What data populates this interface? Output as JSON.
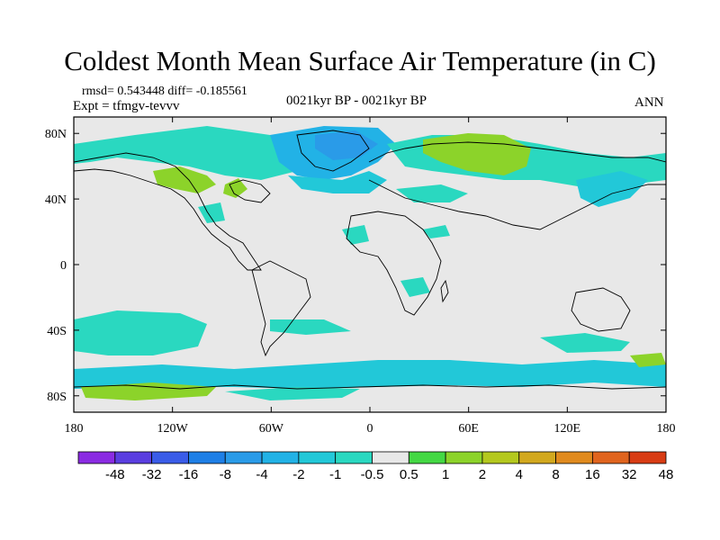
{
  "title": "Coldest Month Mean Surface Air Temperature (in C)",
  "stats_text": "rmsd= 0.543448 diff= -0.185561",
  "expt_text": "Expt = tfmgv-tevvv",
  "center_label": "0021kyr BP - 0021kyr BP",
  "season_label": "ANN",
  "map": {
    "projection": "cylindrical equidistant",
    "lon_range": [
      -180,
      180
    ],
    "lat_range": [
      -90,
      90
    ],
    "x_ticks": [
      {
        "lon": -180,
        "label": "180"
      },
      {
        "lon": -120,
        "label": "120W"
      },
      {
        "lon": -60,
        "label": "60W"
      },
      {
        "lon": 0,
        "label": "0"
      },
      {
        "lon": 60,
        "label": "60E"
      },
      {
        "lon": 120,
        "label": "120E"
      },
      {
        "lon": 180,
        "label": "180"
      }
    ],
    "y_ticks": [
      {
        "lat": 80,
        "label": "80N"
      },
      {
        "lat": 40,
        "label": "40N"
      },
      {
        "lat": 0,
        "label": "0"
      },
      {
        "lat": -40,
        "label": "40S"
      },
      {
        "lat": -80,
        "label": "80S"
      }
    ],
    "background_color": "#e8e8e8"
  },
  "colorbar": {
    "boundaries": [
      "-48",
      "-32",
      "-16",
      "-8",
      "-4",
      "-2",
      "-1",
      "-0.5",
      "0.5",
      "1",
      "2",
      "4",
      "8",
      "16",
      "32",
      "48"
    ],
    "colors": [
      "#8a2be2",
      "#5a3ee0",
      "#3a5ce8",
      "#1e7fe6",
      "#2a9be8",
      "#22b2e6",
      "#22c8d8",
      "#2ad8c0",
      "#e8e8e8",
      "#44d844",
      "#8cd32a",
      "#b4c81e",
      "#d2a81e",
      "#e08a1e",
      "#e0641e",
      "#d83c14"
    ]
  },
  "regions": [
    {
      "id": "arctic-canada",
      "value_range": "-1 to -0.5",
      "lon": [
        -170,
        -90
      ],
      "lat": [
        60,
        80
      ]
    },
    {
      "id": "greenland",
      "value_range": "-4 to -2",
      "lon": [
        -60,
        -20
      ],
      "lat": [
        65,
        82
      ]
    },
    {
      "id": "north-atlantic",
      "value_range": "-2 to -1",
      "lon": [
        -60,
        0
      ],
      "lat": [
        45,
        75
      ]
    },
    {
      "id": "siberia",
      "value_range": "0.5 to 2",
      "lon": [
        40,
        110
      ],
      "lat": [
        50,
        78
      ]
    },
    {
      "id": "southern-ocean",
      "value_range": "-1 to -0.5",
      "lon": [
        -180,
        180
      ],
      "lat": [
        -75,
        -35
      ]
    }
  ]
}
